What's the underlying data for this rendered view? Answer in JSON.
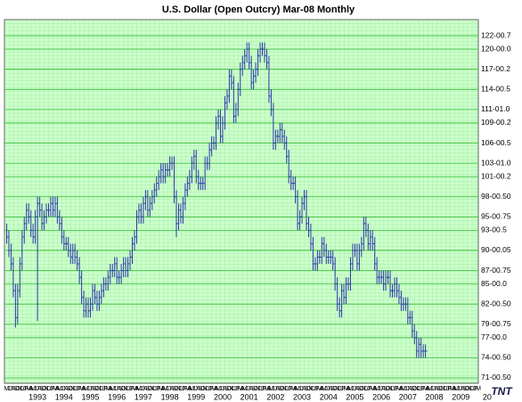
{
  "chart_data": {
    "type": "hlc",
    "title": "U.S. Dollar (Open Outcry) Mar-08  Monthly",
    "color": "#2a35a8",
    "x": [
      "1992-05",
      "1992-06",
      "1992-07",
      "1992-08",
      "1992-09",
      "1992-10",
      "1992-11",
      "1992-12",
      "1993-01",
      "1993-02",
      "1993-03",
      "1993-04",
      "1993-05",
      "1993-06",
      "1993-07",
      "1993-08",
      "1993-09",
      "1993-10",
      "1993-11",
      "1993-12",
      "1994-01",
      "1994-02",
      "1994-03",
      "1994-04",
      "1994-05",
      "1994-06",
      "1994-07",
      "1994-08",
      "1994-09",
      "1994-10",
      "1994-11",
      "1994-12",
      "1995-01",
      "1995-02",
      "1995-03",
      "1995-04",
      "1995-05",
      "1995-06",
      "1995-07",
      "1995-08",
      "1995-09",
      "1995-10",
      "1995-11",
      "1995-12",
      "1996-01",
      "1996-02",
      "1996-03",
      "1996-04",
      "1996-05",
      "1996-06",
      "1996-07",
      "1996-08",
      "1996-09",
      "1996-10",
      "1996-11",
      "1996-12",
      "1997-01",
      "1997-02",
      "1997-03",
      "1997-04",
      "1997-05",
      "1997-06",
      "1997-07",
      "1997-08",
      "1997-09",
      "1997-10",
      "1997-11",
      "1997-12",
      "1998-01",
      "1998-02",
      "1998-03",
      "1998-04",
      "1998-05",
      "1998-06",
      "1998-07",
      "1998-08",
      "1998-09",
      "1998-10",
      "1998-11",
      "1998-12",
      "1999-01",
      "1999-02",
      "1999-03",
      "1999-04",
      "1999-05",
      "1999-06",
      "1999-07",
      "1999-08",
      "1999-09",
      "1999-10",
      "1999-11",
      "1999-12",
      "2000-01",
      "2000-02",
      "2000-03",
      "2000-04",
      "2000-05",
      "2000-06",
      "2000-07",
      "2000-08",
      "2000-09",
      "2000-10",
      "2000-11",
      "2000-12",
      "2001-01",
      "2001-02",
      "2001-03",
      "2001-04",
      "2001-05",
      "2001-06",
      "2001-07",
      "2001-08",
      "2001-09",
      "2001-10",
      "2001-11",
      "2001-12",
      "2002-01",
      "2002-02",
      "2002-03",
      "2002-04",
      "2002-05",
      "2002-06",
      "2002-07",
      "2002-08",
      "2002-09",
      "2002-10",
      "2002-11",
      "2002-12",
      "2003-01",
      "2003-02",
      "2003-03",
      "2003-04",
      "2003-05",
      "2003-06",
      "2003-07",
      "2003-08",
      "2003-09",
      "2003-10",
      "2003-11",
      "2003-12",
      "2004-01",
      "2004-02",
      "2004-03",
      "2004-04",
      "2004-05",
      "2004-06",
      "2004-07",
      "2004-08",
      "2004-09",
      "2004-10",
      "2004-11",
      "2004-12",
      "2005-01",
      "2005-02",
      "2005-03",
      "2005-04",
      "2005-05",
      "2005-06",
      "2005-07",
      "2005-08",
      "2005-09",
      "2005-10",
      "2005-11",
      "2005-12",
      "2006-01",
      "2006-02",
      "2006-03",
      "2006-04",
      "2006-05",
      "2006-06",
      "2006-07",
      "2006-08",
      "2006-09",
      "2006-10",
      "2006-11",
      "2006-12",
      "2007-01",
      "2007-02",
      "2007-03",
      "2007-04",
      "2007-05",
      "2007-06",
      "2007-07",
      "2007-08",
      "2007-09",
      "2007-10",
      "2007-11",
      "2007-12",
      "2008-01",
      "2008-02",
      "2008-03"
    ],
    "high": [
      94,
      93,
      91,
      89,
      85,
      85,
      89,
      93,
      95,
      97,
      97,
      96,
      94,
      96,
      98,
      98,
      97,
      96,
      97,
      97,
      98,
      98,
      98,
      98,
      96,
      95,
      93,
      92,
      92,
      91,
      91,
      91,
      90,
      89,
      87,
      84,
      83,
      83,
      83,
      85,
      85,
      84,
      84,
      85,
      86,
      86,
      87,
      88,
      88,
      89,
      89,
      87,
      88,
      89,
      89,
      89,
      90,
      92,
      93,
      96,
      97,
      97,
      98,
      99,
      99,
      98,
      99,
      100,
      101,
      102,
      103,
      103,
      103,
      103,
      104,
      104,
      104,
      99,
      97,
      97,
      98,
      100,
      101,
      102,
      104,
      105,
      105,
      102,
      101,
      101,
      104,
      104,
      106,
      107,
      107,
      110,
      111,
      111,
      110,
      113,
      114,
      117,
      117,
      116,
      112,
      115,
      118,
      119,
      120,
      121,
      121,
      119,
      117,
      118,
      120,
      121,
      121,
      121,
      120,
      119,
      114,
      112,
      108,
      108,
      109,
      109,
      108,
      107,
      105,
      102,
      101,
      101,
      99,
      96,
      98,
      99,
      99,
      95,
      94,
      92,
      89,
      90,
      90,
      92,
      92,
      91,
      90,
      90,
      90,
      89,
      86,
      83,
      85,
      85,
      86,
      86,
      89,
      91,
      91,
      91,
      91,
      92,
      95,
      95,
      94,
      93,
      93,
      92,
      89,
      87,
      87,
      87,
      87,
      87,
      87,
      85,
      86,
      86,
      85,
      84,
      83,
      83,
      83,
      81,
      81,
      79,
      78,
      77,
      77,
      76,
      76
    ],
    "low": [
      91,
      89,
      87,
      83,
      78.5,
      79,
      83,
      87,
      91,
      93,
      94,
      92,
      91,
      91,
      79.5,
      95,
      93,
      93,
      94,
      95,
      95,
      95,
      95,
      94,
      93,
      91,
      90,
      90,
      89,
      88,
      88,
      88,
      87,
      85,
      82,
      80,
      80,
      80,
      80,
      81,
      82,
      81,
      81,
      82,
      83,
      84,
      84,
      85,
      86,
      86,
      85,
      85,
      85,
      86,
      86,
      86,
      87,
      88,
      90,
      91,
      94,
      94,
      94,
      96,
      95,
      95,
      96,
      97,
      98,
      99,
      100,
      100,
      100,
      101,
      101,
      102,
      97,
      92,
      93,
      94,
      94,
      96,
      98,
      99,
      100,
      102,
      100,
      99,
      99,
      99,
      99,
      102,
      102,
      104,
      105,
      105,
      108,
      106,
      106,
      108,
      111,
      112,
      114,
      109,
      109,
      110,
      113,
      116,
      117,
      118,
      117,
      114,
      114,
      115,
      116,
      118,
      119,
      118,
      117,
      112,
      110,
      105,
      105,
      106,
      106,
      106,
      105,
      103,
      100,
      99,
      99,
      97,
      93,
      93,
      94,
      96,
      93,
      92,
      90,
      87,
      87,
      87,
      88,
      88,
      89,
      88,
      88,
      88,
      87,
      84,
      81,
      80,
      80,
      82,
      82,
      84,
      84,
      87,
      89,
      87,
      87,
      89,
      90,
      92,
      90,
      90,
      90,
      87,
      85,
      85,
      85,
      84,
      84,
      85,
      83,
      83,
      83,
      83,
      82,
      81,
      81,
      81,
      79,
      79,
      77,
      76,
      74,
      74,
      74,
      74,
      74
    ],
    "close": [
      92,
      90,
      88,
      84,
      80,
      84,
      88,
      92,
      94,
      96,
      95,
      93,
      92,
      95,
      97,
      96,
      94,
      95,
      96,
      96,
      97,
      96,
      97,
      95,
      94,
      92,
      91,
      91,
      90,
      89,
      90,
      89,
      88,
      86,
      83,
      81,
      82,
      81,
      82,
      84,
      83,
      82,
      83,
      84,
      85,
      85,
      86,
      87,
      87,
      88,
      86,
      86,
      87,
      88,
      87,
      88,
      89,
      91,
      92,
      95,
      96,
      95,
      97,
      98,
      96,
      97,
      98,
      99,
      100,
      101,
      102,
      101,
      102,
      102,
      103,
      103,
      98,
      94,
      96,
      95,
      97,
      99,
      100,
      101,
      103,
      104,
      101,
      100,
      100,
      100,
      103,
      103,
      105,
      106,
      106,
      109,
      110,
      107,
      109,
      112,
      113,
      116,
      115,
      110,
      111,
      114,
      117,
      118,
      119,
      120,
      118,
      115,
      116,
      117,
      119,
      120,
      120,
      119,
      118,
      113,
      111,
      106,
      107,
      107,
      108,
      107,
      106,
      104,
      101,
      100,
      100,
      98,
      94,
      95,
      97,
      98,
      94,
      93,
      91,
      88,
      88,
      89,
      89,
      91,
      90,
      89,
      89,
      89,
      88,
      85,
      82,
      81,
      84,
      83,
      85,
      85,
      88,
      90,
      90,
      88,
      90,
      91,
      94,
      93,
      91,
      92,
      91,
      88,
      86,
      86,
      86,
      85,
      86,
      86,
      84,
      84,
      85,
      84,
      83,
      82,
      82,
      82,
      80,
      80,
      78,
      77,
      75,
      76,
      75,
      75,
      75
    ],
    "xlim": [
      "1992-04",
      "2010-03"
    ],
    "xticks": [
      {
        "value": "1993-07",
        "label": "1993"
      },
      {
        "value": "1994-07",
        "label": "1994"
      },
      {
        "value": "1995-07",
        "label": "1995"
      },
      {
        "value": "1996-07",
        "label": "1996"
      },
      {
        "value": "1997-07",
        "label": "1997"
      },
      {
        "value": "1998-07",
        "label": "1998"
      },
      {
        "value": "1999-07",
        "label": "1999"
      },
      {
        "value": "2000-07",
        "label": "2000"
      },
      {
        "value": "2001-07",
        "label": "2001"
      },
      {
        "value": "2002-07",
        "label": "2002"
      },
      {
        "value": "2003-07",
        "label": "2003"
      },
      {
        "value": "2004-07",
        "label": "2004"
      },
      {
        "value": "2005-07",
        "label": "2005"
      },
      {
        "value": "2006-07",
        "label": "2006"
      },
      {
        "value": "2007-07",
        "label": "2007"
      },
      {
        "value": "2008-07",
        "label": "2008"
      },
      {
        "value": "2009-07",
        "label": "2009"
      },
      {
        "value": "2010-07",
        "label": "20"
      }
    ],
    "month_letters": [
      "J",
      "F",
      "M",
      "A",
      "M",
      "J",
      "J",
      "A",
      "S",
      "O",
      "N",
      "D"
    ],
    "ylim": [
      70.2,
      124.4
    ],
    "yticks": [
      {
        "value": 71,
        "label": "71-00.50"
      },
      {
        "value": 74,
        "label": "74-00.50"
      },
      {
        "value": 77,
        "label": "77-00.0"
      },
      {
        "value": 79,
        "label": "79-00.75"
      },
      {
        "value": 82,
        "label": "82-00.50"
      },
      {
        "value": 85,
        "label": "85-00.0"
      },
      {
        "value": 87,
        "label": "87-00.75"
      },
      {
        "value": 90,
        "label": "90-00.05"
      },
      {
        "value": 93,
        "label": "93-00.5"
      },
      {
        "value": 95,
        "label": "95-00.75"
      },
      {
        "value": 98,
        "label": "98-00.50"
      },
      {
        "value": 101,
        "label": "101-00.2"
      },
      {
        "value": 103,
        "label": "103-01.0"
      },
      {
        "value": 106,
        "label": "106-00.5"
      },
      {
        "value": 109,
        "label": "109-00.2"
      },
      {
        "value": 111,
        "label": "111-01.0"
      },
      {
        "value": 114,
        "label": "114-00.5"
      },
      {
        "value": 117,
        "label": "117-00.2"
      },
      {
        "value": 120,
        "label": "120-00.0"
      },
      {
        "value": 122,
        "label": "122-00.7"
      }
    ],
    "grid": true,
    "logo": "TNT"
  }
}
